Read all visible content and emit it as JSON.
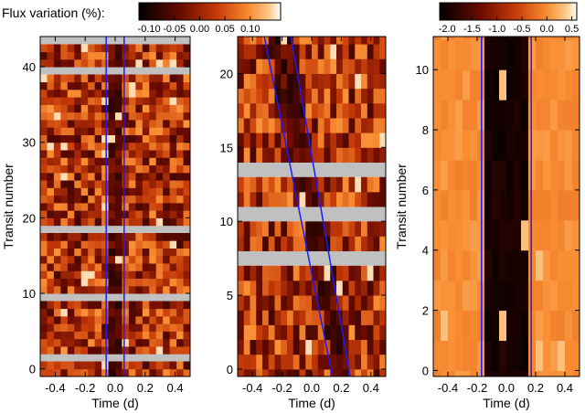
{
  "colorbar_title": "Flux variation (%):",
  "chart_data": [
    {
      "type": "heatmap",
      "xlabel": "Time (d)",
      "ylabel": "Transit number",
      "xlim": [
        -0.5,
        0.5
      ],
      "ylim": [
        -1,
        44
      ],
      "x_ticks": [
        "-0.4",
        "-0.2",
        "0.0",
        "0.2",
        "0.4"
      ],
      "x_tick_values": [
        -0.4,
        -0.2,
        0.0,
        0.2,
        0.4
      ],
      "y_ticks": [
        "0",
        "10",
        "20",
        "30",
        "40"
      ],
      "y_tick_values": [
        0,
        10,
        20,
        30,
        40
      ],
      "colorbar": {
        "ticks": [
          "-0.10",
          "-0.05",
          "0.00",
          "0.05",
          "0.10"
        ],
        "tick_values": [
          -0.1,
          -0.05,
          0.0,
          0.05,
          0.1
        ],
        "range": [
          -0.12,
          0.16
        ]
      },
      "missing_rows": [
        1,
        9,
        18,
        39,
        43
      ],
      "transit_window": {
        "start": [
          -0.06,
          -0.06
        ],
        "end": [
          0.06,
          0.06
        ]
      },
      "colormap": "black-red-orange-white"
    },
    {
      "type": "heatmap",
      "xlabel": "Time (d)",
      "ylabel": "",
      "xlim": [
        -0.5,
        0.5
      ],
      "ylim": [
        -0.5,
        22.5
      ],
      "x_ticks": [
        "-0.4",
        "-0.2",
        "0.0",
        "0.2",
        "0.4"
      ],
      "x_tick_values": [
        -0.4,
        -0.2,
        0.0,
        0.2,
        0.4
      ],
      "y_ticks": [
        "0",
        "5",
        "10",
        "15",
        "20"
      ],
      "y_tick_values": [
        0,
        5,
        10,
        15,
        20
      ],
      "missing_rows": [
        7,
        10,
        13
      ],
      "transit_window": {
        "start": [
          0.14,
          -0.32
        ],
        "end": [
          0.26,
          -0.14
        ]
      },
      "colormap": "black-red-orange-white"
    },
    {
      "type": "heatmap",
      "xlabel": "Time (d)",
      "ylabel": "Transit number",
      "xlim": [
        -0.5,
        0.5
      ],
      "ylim": [
        -0.2,
        11.1
      ],
      "x_ticks": [
        "-0.4",
        "-0.2",
        "0.0",
        "0.2",
        "0.4"
      ],
      "x_tick_values": [
        -0.4,
        -0.2,
        0.0,
        0.2,
        0.4
      ],
      "y_ticks": [
        "0",
        "2",
        "4",
        "6",
        "8",
        "10"
      ],
      "y_tick_values": [
        0,
        2,
        4,
        6,
        8,
        10
      ],
      "colorbar": {
        "ticks": [
          "-2.0",
          "-1.5",
          "-1.0",
          "-0.5",
          "0.0",
          "0.5"
        ],
        "tick_values": [
          -2.0,
          -1.5,
          -1.0,
          -0.5,
          0.0,
          0.5
        ],
        "range": [
          -2.15,
          0.6
        ]
      },
      "missing_rows": [],
      "transit_window": {
        "start": [
          -0.17,
          -0.17
        ],
        "end": [
          0.17,
          0.17
        ]
      },
      "colormap": "black-red-orange-white"
    }
  ]
}
